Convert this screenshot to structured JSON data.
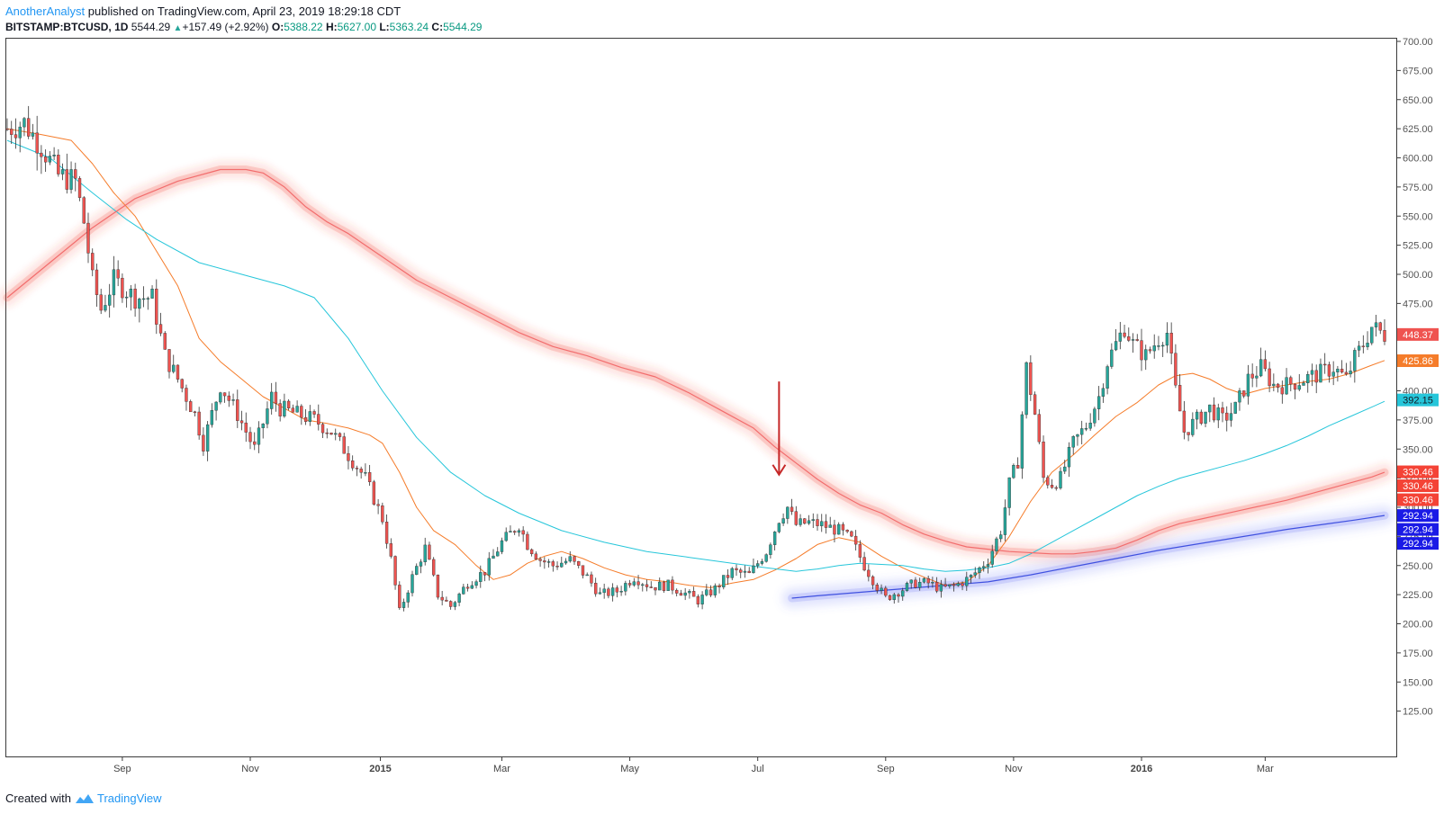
{
  "header": {
    "author": "AnotherAnalyst",
    "published": "published on TradingView.com, April 23, 2019 18:29:18 CDT",
    "symbol": "BITSTAMP:BTCUSD, 1D",
    "last": "5544.29",
    "change": "+157.49 (+2.92%)",
    "o_label": "O:",
    "o": "5388.22",
    "h_label": "H:",
    "h": "5627.00",
    "l_label": "L:",
    "l": "5363.24",
    "c_label": "C:",
    "c": "5544.29",
    "up_color": "#26a69a"
  },
  "footer": {
    "created": "Created with",
    "brand": "TradingView"
  },
  "chart_data": {
    "type": "line",
    "ylim": [
      100,
      700
    ],
    "y_ticks": [
      "125.00",
      "150.00",
      "175.00",
      "200.00",
      "225.00",
      "250.00",
      "275.00",
      "300.00",
      "325.00",
      "350.00",
      "375.00",
      "400.00",
      "425.00",
      "450.00",
      "475.00",
      "500.00",
      "525.00",
      "550.00",
      "575.00",
      "600.00",
      "625.00",
      "650.00",
      "675.00",
      "700.00"
    ],
    "x_ticks": [
      {
        "label": "Sep",
        "t": 27.0,
        "bold": false
      },
      {
        "label": "Nov",
        "t": 57.0,
        "bold": false
      },
      {
        "label": "2015",
        "t": 87.5,
        "bold": true
      },
      {
        "label": "Mar",
        "t": 116.0,
        "bold": false
      },
      {
        "label": "May",
        "t": 146.0,
        "bold": false
      },
      {
        "label": "Jul",
        "t": 176.0,
        "bold": false
      },
      {
        "label": "Sep",
        "t": 206.0,
        "bold": false
      },
      {
        "label": "Nov",
        "t": 236.0,
        "bold": false
      },
      {
        "label": "2016",
        "t": 266.0,
        "bold": true
      },
      {
        "label": "Mar",
        "t": 295.0,
        "bold": false
      }
    ],
    "price": [
      [
        0,
        625
      ],
      [
        4,
        630
      ],
      [
        8,
        610
      ],
      [
        12,
        585
      ],
      [
        16,
        580
      ],
      [
        18,
        545
      ],
      [
        20,
        495
      ],
      [
        22,
        470
      ],
      [
        25,
        495
      ],
      [
        30,
        480
      ],
      [
        34,
        480
      ],
      [
        37,
        430
      ],
      [
        40,
        410
      ],
      [
        44,
        380
      ],
      [
        46,
        355
      ],
      [
        50,
        405
      ],
      [
        54,
        380
      ],
      [
        58,
        350
      ],
      [
        62,
        395
      ],
      [
        64,
        385
      ],
      [
        68,
        380
      ],
      [
        72,
        375
      ],
      [
        76,
        365
      ],
      [
        80,
        345
      ],
      [
        84,
        325
      ],
      [
        88,
        290
      ],
      [
        90,
        255
      ],
      [
        92,
        210
      ],
      [
        95,
        240
      ],
      [
        98,
        265
      ],
      [
        101,
        225
      ],
      [
        104,
        215
      ],
      [
        108,
        235
      ],
      [
        112,
        245
      ],
      [
        116,
        270
      ],
      [
        120,
        285
      ],
      [
        122,
        268
      ],
      [
        125,
        255
      ],
      [
        128,
        250
      ],
      [
        132,
        255
      ],
      [
        136,
        240
      ],
      [
        139,
        225
      ],
      [
        143,
        228
      ],
      [
        147,
        240
      ],
      [
        151,
        232
      ],
      [
        155,
        233
      ],
      [
        158,
        228
      ],
      [
        162,
        220
      ],
      [
        166,
        230
      ],
      [
        170,
        245
      ],
      [
        174,
        242
      ],
      [
        178,
        262
      ],
      [
        181,
        290
      ],
      [
        183,
        300
      ],
      [
        185,
        285
      ],
      [
        188,
        287
      ],
      [
        191,
        285
      ],
      [
        195,
        280
      ],
      [
        198,
        272
      ],
      [
        201,
        250
      ],
      [
        204,
        232
      ],
      [
        206,
        222
      ],
      [
        209,
        228
      ],
      [
        213,
        235
      ],
      [
        216,
        235
      ],
      [
        219,
        230
      ],
      [
        222,
        232
      ],
      [
        226,
        240
      ],
      [
        230,
        255
      ],
      [
        233,
        280
      ],
      [
        235,
        320
      ],
      [
        237,
        340
      ],
      [
        239,
        420
      ],
      [
        241,
        380
      ],
      [
        243,
        325
      ],
      [
        245,
        320
      ],
      [
        247,
        325
      ],
      [
        250,
        355
      ],
      [
        253,
        370
      ],
      [
        256,
        395
      ],
      [
        258,
        425
      ],
      [
        260,
        440
      ],
      [
        262,
        455
      ],
      [
        264,
        440
      ],
      [
        267,
        430
      ],
      [
        270,
        445
      ],
      [
        272,
        450
      ],
      [
        274,
        400
      ],
      [
        276,
        365
      ],
      [
        279,
        375
      ],
      [
        282,
        385
      ],
      [
        285,
        375
      ],
      [
        288,
        385
      ],
      [
        291,
        410
      ],
      [
        294,
        420
      ],
      [
        297,
        405
      ],
      [
        300,
        405
      ],
      [
        304,
        410
      ],
      [
        308,
        415
      ],
      [
        311,
        420
      ],
      [
        314,
        410
      ],
      [
        316,
        428
      ],
      [
        318,
        440
      ],
      [
        320,
        455
      ],
      [
        323,
        448
      ]
    ],
    "series": [
      {
        "color": "#f57c2a",
        "width": 1,
        "values": [
          [
            0,
            625
          ],
          [
            8,
            620
          ],
          [
            15,
            615
          ],
          [
            20,
            595
          ],
          [
            25,
            570
          ],
          [
            30,
            550
          ],
          [
            35,
            520
          ],
          [
            40,
            490
          ],
          [
            45,
            445
          ],
          [
            50,
            425
          ],
          [
            55,
            410
          ],
          [
            60,
            395
          ],
          [
            65,
            385
          ],
          [
            70,
            375
          ],
          [
            75,
            372
          ],
          [
            80,
            368
          ],
          [
            85,
            362
          ],
          [
            88,
            355
          ],
          [
            92,
            330
          ],
          [
            96,
            300
          ],
          [
            100,
            280
          ],
          [
            105,
            268
          ],
          [
            110,
            250
          ],
          [
            114,
            238
          ],
          [
            118,
            242
          ],
          [
            122,
            252
          ],
          [
            126,
            258
          ],
          [
            130,
            262
          ],
          [
            135,
            256
          ],
          [
            140,
            248
          ],
          [
            145,
            242
          ],
          [
            150,
            238
          ],
          [
            155,
            236
          ],
          [
            160,
            233
          ],
          [
            165,
            231
          ],
          [
            170,
            235
          ],
          [
            175,
            238
          ],
          [
            180,
            246
          ],
          [
            185,
            256
          ],
          [
            190,
            268
          ],
          [
            195,
            274
          ],
          [
            200,
            270
          ],
          [
            205,
            258
          ],
          [
            210,
            248
          ],
          [
            215,
            240
          ],
          [
            220,
            233
          ],
          [
            225,
            236
          ],
          [
            230,
            250
          ],
          [
            235,
            275
          ],
          [
            240,
            305
          ],
          [
            245,
            330
          ],
          [
            250,
            345
          ],
          [
            255,
            362
          ],
          [
            260,
            378
          ],
          [
            265,
            390
          ],
          [
            270,
            405
          ],
          [
            274,
            413
          ],
          [
            278,
            415
          ],
          [
            282,
            410
          ],
          [
            286,
            402
          ],
          [
            290,
            397
          ],
          [
            295,
            402
          ],
          [
            300,
            405
          ],
          [
            305,
            408
          ],
          [
            310,
            410
          ],
          [
            315,
            415
          ],
          [
            320,
            422
          ],
          [
            323,
            426
          ]
        ]
      },
      {
        "color": "#26c6da",
        "width": 1,
        "values": [
          [
            0,
            615
          ],
          [
            10,
            600
          ],
          [
            20,
            570
          ],
          [
            28,
            547
          ],
          [
            35,
            530
          ],
          [
            45,
            510
          ],
          [
            55,
            500
          ],
          [
            65,
            490
          ],
          [
            72,
            480
          ],
          [
            80,
            445
          ],
          [
            88,
            400
          ],
          [
            96,
            360
          ],
          [
            104,
            330
          ],
          [
            112,
            310
          ],
          [
            120,
            295
          ],
          [
            130,
            280
          ],
          [
            140,
            270
          ],
          [
            150,
            262
          ],
          [
            160,
            257
          ],
          [
            170,
            252
          ],
          [
            178,
            248
          ],
          [
            185,
            245
          ],
          [
            190,
            247
          ],
          [
            195,
            250
          ],
          [
            200,
            252
          ],
          [
            205,
            251
          ],
          [
            210,
            250
          ],
          [
            215,
            247
          ],
          [
            220,
            245
          ],
          [
            225,
            246
          ],
          [
            230,
            248
          ],
          [
            235,
            252
          ],
          [
            240,
            260
          ],
          [
            245,
            270
          ],
          [
            250,
            280
          ],
          [
            255,
            290
          ],
          [
            260,
            300
          ],
          [
            265,
            310
          ],
          [
            270,
            318
          ],
          [
            275,
            325
          ],
          [
            280,
            330
          ],
          [
            285,
            335
          ],
          [
            290,
            340
          ],
          [
            295,
            346
          ],
          [
            300,
            353
          ],
          [
            305,
            361
          ],
          [
            310,
            370
          ],
          [
            315,
            378
          ],
          [
            320,
            386
          ],
          [
            323,
            391
          ]
        ]
      },
      {
        "color": "#f26d6d",
        "width": 1.2,
        "glow": "#f44336",
        "values": [
          [
            0,
            480
          ],
          [
            10,
            510
          ],
          [
            20,
            540
          ],
          [
            30,
            565
          ],
          [
            40,
            580
          ],
          [
            50,
            590
          ],
          [
            56,
            590
          ],
          [
            60,
            587
          ],
          [
            65,
            575
          ],
          [
            70,
            558
          ],
          [
            75,
            545
          ],
          [
            80,
            535
          ],
          [
            88,
            515
          ],
          [
            96,
            495
          ],
          [
            104,
            480
          ],
          [
            112,
            465
          ],
          [
            120,
            450
          ],
          [
            128,
            438
          ],
          [
            136,
            430
          ],
          [
            144,
            420
          ],
          [
            152,
            412
          ],
          [
            160,
            398
          ],
          [
            168,
            382
          ],
          [
            175,
            368
          ],
          [
            180,
            352
          ],
          [
            185,
            338
          ],
          [
            190,
            324
          ],
          [
            195,
            312
          ],
          [
            200,
            302
          ],
          [
            205,
            295
          ],
          [
            210,
            285
          ],
          [
            215,
            277
          ],
          [
            220,
            271
          ],
          [
            225,
            266
          ],
          [
            230,
            264
          ],
          [
            235,
            262
          ],
          [
            240,
            261
          ],
          [
            245,
            260
          ],
          [
            250,
            260
          ],
          [
            255,
            262
          ],
          [
            260,
            265
          ],
          [
            265,
            272
          ],
          [
            270,
            280
          ],
          [
            275,
            286
          ],
          [
            280,
            290
          ],
          [
            285,
            294
          ],
          [
            290,
            298
          ],
          [
            295,
            302
          ],
          [
            300,
            306
          ],
          [
            305,
            311
          ],
          [
            310,
            316
          ],
          [
            315,
            321
          ],
          [
            320,
            326
          ],
          [
            323,
            330
          ]
        ]
      },
      {
        "color": "#3f51e0",
        "width": 1.2,
        "glow": "#5c6bf5",
        "values": [
          [
            184,
            222
          ],
          [
            190,
            224
          ],
          [
            200,
            227
          ],
          [
            210,
            230
          ],
          [
            220,
            233
          ],
          [
            230,
            236
          ],
          [
            240,
            242
          ],
          [
            250,
            249
          ],
          [
            260,
            256
          ],
          [
            270,
            263
          ],
          [
            280,
            269
          ],
          [
            290,
            275
          ],
          [
            300,
            281
          ],
          [
            310,
            286
          ],
          [
            316,
            289
          ],
          [
            323,
            293
          ]
        ]
      }
    ],
    "annotations": [
      {
        "type": "arrow-down",
        "t": 181,
        "y_from": 408,
        "y_to": 328,
        "color": "#c62828"
      }
    ],
    "price_labels": [
      {
        "text": "448.37",
        "y": 448.37,
        "bg": "#ef5350"
      },
      {
        "text": "425.86",
        "y": 425.86,
        "bg": "#f57c2a"
      },
      {
        "text": "392.15",
        "y": 392.15,
        "bg": "#26c6da",
        "fg": "#131722"
      },
      {
        "text": "330.46",
        "y": 330.46,
        "bg": "#f44336"
      },
      {
        "text": "330.46",
        "y": 318.5,
        "bg": "#f44336"
      },
      {
        "text": "330.46",
        "y": 306.5,
        "bg": "#f44336"
      },
      {
        "text": "292.94",
        "y": 292.94,
        "bg": "#1a1ae6"
      },
      {
        "text": "292.94",
        "y": 281,
        "bg": "#1a1ae6"
      },
      {
        "text": "292.94",
        "y": 269,
        "bg": "#1a1ae6"
      }
    ]
  }
}
